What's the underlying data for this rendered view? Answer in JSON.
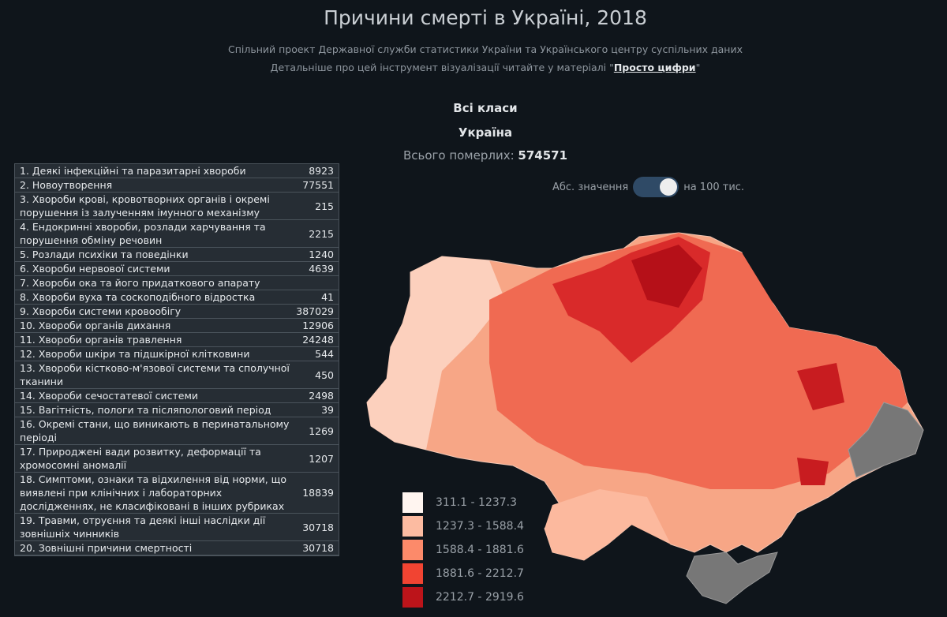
{
  "header": {
    "title": "Причини смерті в Україні, 2018",
    "subtitle_1": "Спільний проект Державної служби статистики України та Українського центру суспільних даних",
    "subtitle_2": "Детальніше про цей інструмент візуалізації читайте у матеріалі \"",
    "subtitle_link": "Просто цифри",
    "subtitle_end": "\""
  },
  "selection": {
    "class": "Всі класи",
    "region": "Україна",
    "total_label": "Всього померлих:",
    "total": 574571
  },
  "toggle": {
    "left": "Абс. значення",
    "right": "на 100 тис."
  },
  "table": {
    "rows": [
      {
        "name": "1. Деякі інфекційні та паразитарні хвороби",
        "value": 8923
      },
      {
        "name": "2. Новоутворення",
        "value": 77551
      },
      {
        "name": "3. Хвороби крові, кровотворних органів і окремі порушення із залученням імунного механізму",
        "value": 215
      },
      {
        "name": "4. Ендокринні хвороби, розлади харчування та порушення обміну речовин",
        "value": 2215
      },
      {
        "name": "5. Розлади психіки та поведінки",
        "value": 1240
      },
      {
        "name": "6. Хвороби нервової системи",
        "value": 4639
      },
      {
        "name": "7. Хвороби ока та його придаткового апарату"
      },
      {
        "name": "8. Хвороби вуха та соскоподібного відростка",
        "value": 41
      },
      {
        "name": "9. Хвороби системи кровообігу",
        "value": 387029
      },
      {
        "name": "10. Хвороби органів дихання",
        "value": 12906
      },
      {
        "name": "11. Хвороби органів травлення",
        "value": 24248
      },
      {
        "name": "12. Хвороби шкіри та підшкірної клітковини",
        "value": 544
      },
      {
        "name": "13. Хвороби кістково-м'язової системи та сполучної тканини",
        "value": 450
      },
      {
        "name": "14. Хвороби сечостатевої системи",
        "value": 2498
      },
      {
        "name": "15. Вагітність, пологи та післяпологовий період",
        "value": 39
      },
      {
        "name": "16. Окремі стани, що виникають в перинатальному періоді",
        "value": 1269
      },
      {
        "name": "17. Природжені вади розвитку, деформації та хромосомні аномалії",
        "value": 1207
      },
      {
        "name": "18. Симптоми, ознаки та відхилення від норми, що виявлені при клінічних і лабораторних дослідженнях, не класифіковані в інших рубриках",
        "value": 18839
      },
      {
        "name": "19. Травми, отруєння та деякі інші наслідки дії зовнішніх чинників",
        "value": 30718
      },
      {
        "name": "20. Зовнішні причини смертності",
        "value": 30718
      }
    ]
  },
  "legend": [
    {
      "label": "311.1 - 1237.3",
      "color": "#fff5f0"
    },
    {
      "label": "1237.3 - 1588.4",
      "color": "#fcbba1"
    },
    {
      "label": "1588.4 - 1881.6",
      "color": "#fc8a6a"
    },
    {
      "label": "1881.6 - 2212.7",
      "color": "#f14432"
    },
    {
      "label": "2212.7 - 2919.6",
      "color": "#bc141a"
    }
  ]
}
